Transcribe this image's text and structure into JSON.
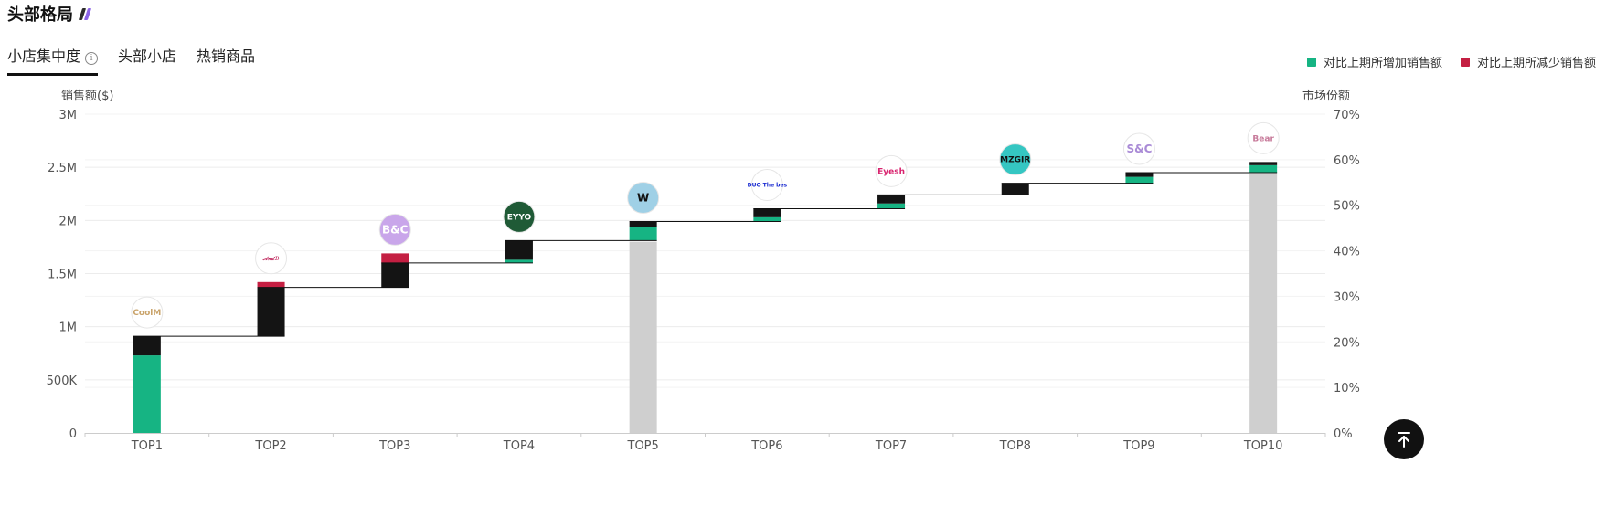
{
  "header": {
    "title": "头部格局"
  },
  "tabs": [
    {
      "label": "小店集中度",
      "active": true
    },
    {
      "label": "头部小店",
      "active": false
    },
    {
      "label": "热销商品",
      "active": false
    }
  ],
  "colors": {
    "increase": "#16b483",
    "decrease": "#c41f42",
    "base": "#141414",
    "market": "#cfcfcf",
    "accent_a": "#2b2b2b",
    "accent_b": "#8b63e6"
  },
  "icons": {
    "info": "info-icon",
    "back_to_top": "arrow-up-to-top-icon"
  },
  "chart_data": {
    "type": "bar",
    "subtype": "waterfall-with-market-share",
    "categories": [
      "TOP1",
      "TOP2",
      "TOP3",
      "TOP4",
      "TOP5",
      "TOP6",
      "TOP7",
      "TOP8",
      "TOP9",
      "TOP10"
    ],
    "legend": [
      {
        "label": "对比上期所增加销售额",
        "color": "#16b483"
      },
      {
        "label": "对比上期所减少销售额",
        "color": "#c41f42"
      }
    ],
    "legend_position": "top-right",
    "ylabel_left": "销售额($)",
    "ylabel_right": "市场份额",
    "y_left": {
      "ticks": [
        0,
        500000,
        1000000,
        1500000,
        2000000,
        2500000,
        3000000
      ],
      "tick_labels": [
        "0",
        "500K",
        "1M",
        "1.5M",
        "2M",
        "2.5M",
        "3M"
      ],
      "ylim": [
        0,
        3000000
      ]
    },
    "y_right": {
      "ticks": [
        0,
        10,
        20,
        30,
        40,
        50,
        60,
        70
      ],
      "tick_labels": [
        "0%",
        "10%",
        "20%",
        "30%",
        "40%",
        "50%",
        "60%",
        "70%"
      ],
      "ylim": [
        0,
        70
      ]
    },
    "grid": true,
    "cumulative_sales": [
      910000,
      1370000,
      1600000,
      1810000,
      1990000,
      2110000,
      2240000,
      2350000,
      2450000,
      2550000
    ],
    "segments": [
      {
        "base_start": 0,
        "green": 730000,
        "black": 180000,
        "red": 0
      },
      {
        "base_start": 910000,
        "green": 0,
        "black": 460000,
        "red": 50000
      },
      {
        "base_start": 1370000,
        "green": 0,
        "black": 230000,
        "red": 90000
      },
      {
        "base_start": 1600000,
        "green": 30000,
        "black": 180000,
        "red": 0
      },
      {
        "base_start": 1810000,
        "green": 130000,
        "black": 50000,
        "red": 0
      },
      {
        "base_start": 1990000,
        "green": 40000,
        "black": 80000,
        "red": 0
      },
      {
        "base_start": 2110000,
        "green": 50000,
        "black": 80000,
        "red": 0
      },
      {
        "base_start": 2240000,
        "green": 0,
        "black": 110000,
        "red": 0
      },
      {
        "base_start": 2350000,
        "green": 60000,
        "black": 40000,
        "red": 0
      },
      {
        "base_start": 2450000,
        "green": 70000,
        "black": 30000,
        "red": 0
      }
    ],
    "market_share_bars": [
      {
        "category": "TOP5",
        "value": 42
      },
      {
        "category": "TOP10",
        "value": 57
      }
    ],
    "shop_logos": [
      {
        "category": "TOP1",
        "text": "CoolM",
        "color": "#c9a36a",
        "bg": "#ffffff"
      },
      {
        "category": "TOP2",
        "text": "𝒜𝓃𝒹ℬ",
        "color": "#c0285d",
        "bg": "#ffffff"
      },
      {
        "category": "TOP3",
        "text": "B&C",
        "color": "#ffffff",
        "bg": "#c9a6ea"
      },
      {
        "category": "TOP4",
        "text": "EYYO",
        "color": "#ffffff",
        "bg": "#1f5a36"
      },
      {
        "category": "TOP5",
        "text": "W",
        "color": "#111111",
        "bg": "#9fd0e6"
      },
      {
        "category": "TOP6",
        "text": "DUO The bes",
        "color": "#1a2bd1",
        "bg": "#ffffff"
      },
      {
        "category": "TOP7",
        "text": "Eyesh",
        "color": "#d8246f",
        "bg": "#ffffff"
      },
      {
        "category": "TOP8",
        "text": "MZGIR",
        "color": "#111111",
        "bg": "#35c6c2"
      },
      {
        "category": "TOP9",
        "text": "S&C",
        "color": "#a98ad6",
        "bg": "#ffffff"
      },
      {
        "category": "TOP10",
        "text": "Bear",
        "color": "#c77a9a",
        "bg": "#ffffff"
      }
    ]
  }
}
